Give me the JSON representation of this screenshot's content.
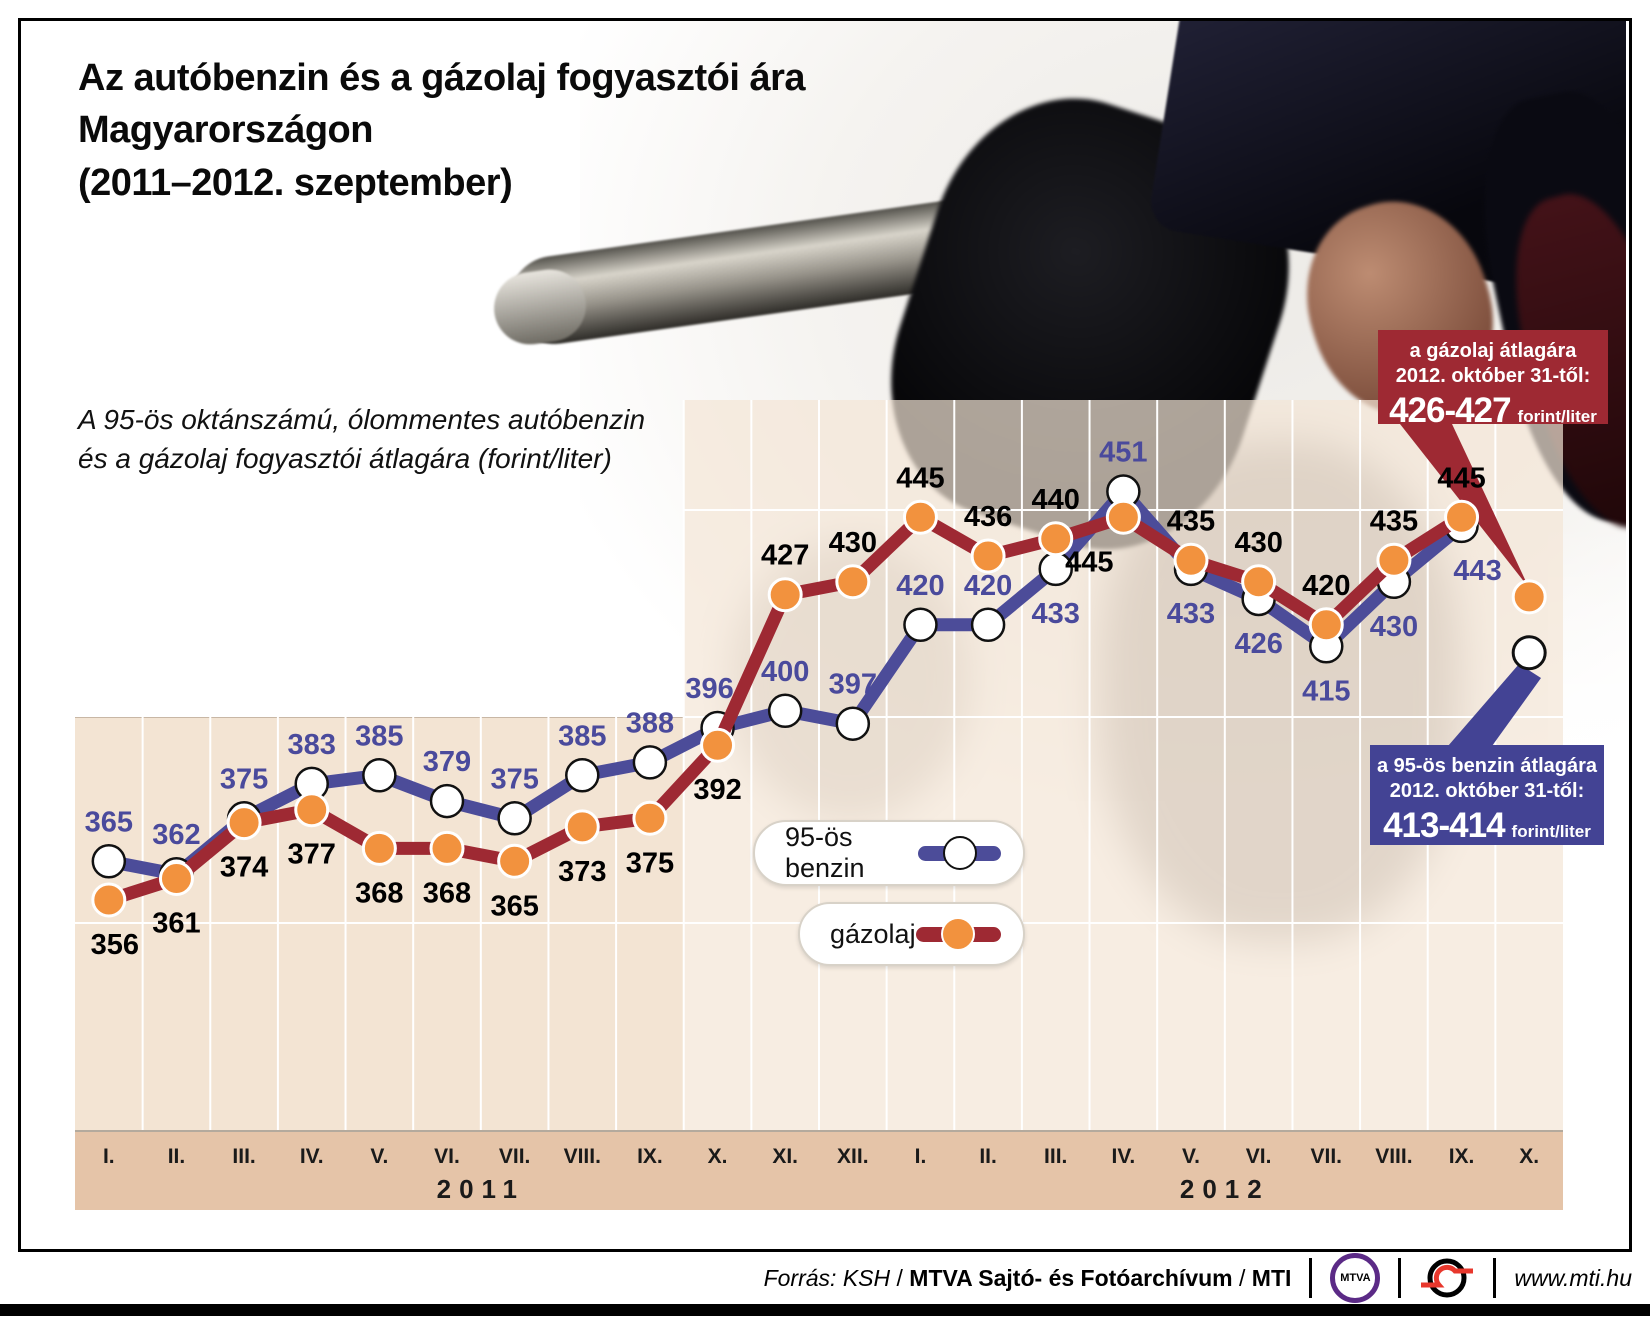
{
  "title": {
    "line1": "Az autóbenzin és a gázolaj fogyasztói ára",
    "line2": "Magyarországon",
    "line3": "(2011–2012. szeptember)"
  },
  "subtitle": {
    "line1": "A 95-ös oktánszámú, ólommentes autóbenzin",
    "line2": "és a gázolaj fogyasztói átlagára (forint/liter)"
  },
  "chart_data": {
    "type": "line",
    "unit": "forint/liter",
    "x_axis": {
      "groups": [
        {
          "year": "2011",
          "months": [
            "I.",
            "II.",
            "III.",
            "IV.",
            "V.",
            "VI.",
            "VII.",
            "VIII.",
            "IX.",
            "X.",
            "XI.",
            "XII."
          ]
        },
        {
          "year": "2012",
          "months": [
            "I.",
            "II.",
            "III.",
            "IV.",
            "V.",
            "VI.",
            "VII.",
            "VIII.",
            "IX.",
            "X."
          ]
        }
      ]
    },
    "ylim": [
      350,
      465
    ],
    "grid": true,
    "series": [
      {
        "name": "95-ös benzin",
        "color": "#4c4c99",
        "marker_fill": "#ffffff",
        "marker_stroke": "#111111",
        "label_color": "#4a4a9c",
        "values": [
          365,
          362,
          375,
          383,
          385,
          379,
          375,
          385,
          388,
          396,
          400,
          397,
          420,
          420,
          433,
          451,
          433,
          426,
          415,
          430,
          443
        ],
        "label_pos": [
          "a",
          "a",
          "a",
          "a",
          "a",
          "a",
          "a",
          "a",
          "a",
          "a",
          "a",
          "a",
          "a",
          "a",
          "b",
          "a",
          "b",
          "b",
          "b",
          "b",
          "b"
        ],
        "label_dx": {
          "9": -8,
          "20": 16
        }
      },
      {
        "name": "gázolaj",
        "color": "#9e2933",
        "marker_fill": "#f2923e",
        "marker_stroke": "#ffffff",
        "label_color": "#000000",
        "values": [
          356,
          361,
          374,
          377,
          368,
          368,
          365,
          373,
          375,
          392,
          427,
          430,
          445,
          436,
          440,
          445,
          435,
          430,
          420,
          435,
          445
        ],
        "label_pos": [
          "b",
          "b",
          "b",
          "b",
          "b",
          "b",
          "b",
          "b",
          "b",
          "b",
          "a",
          "a",
          "a",
          "a",
          "a",
          "b",
          "a",
          "a",
          "a",
          "a",
          "a"
        ],
        "label_dx": {
          "15": -34,
          "0": 6
        }
      }
    ],
    "october_points": [
      {
        "series": "gázolaj",
        "month": "X. 2012",
        "plot_value": 426.5,
        "shown_as": "426-427"
      },
      {
        "series": "95-ös benzin",
        "month": "X. 2012",
        "plot_value": 413.5,
        "shown_as": "413-414"
      }
    ]
  },
  "legend": [
    {
      "label": "95-ös benzin"
    },
    {
      "label": "gázolaj"
    }
  ],
  "annotations": {
    "diesel": {
      "line1": "a gázolaj átlagára",
      "line2": "2012. október 31-től:",
      "value": "426-427",
      "unit": "forint/liter",
      "color": "#9e2933"
    },
    "petrol": {
      "line1": "a 95-ös benzin átlagára",
      "line2": "2012. október 31-től:",
      "value": "413-414",
      "unit": "forint/liter",
      "color": "#434394"
    }
  },
  "footer": {
    "source_italic": "Forrás: KSH",
    "sep1": " / ",
    "source_bold1": "MTVA Sajtó- és Fotóarchívum",
    "sep2": " / ",
    "source_bold2": "MTI",
    "mtva_label": "MTVA",
    "website": "www.mti.hu"
  }
}
